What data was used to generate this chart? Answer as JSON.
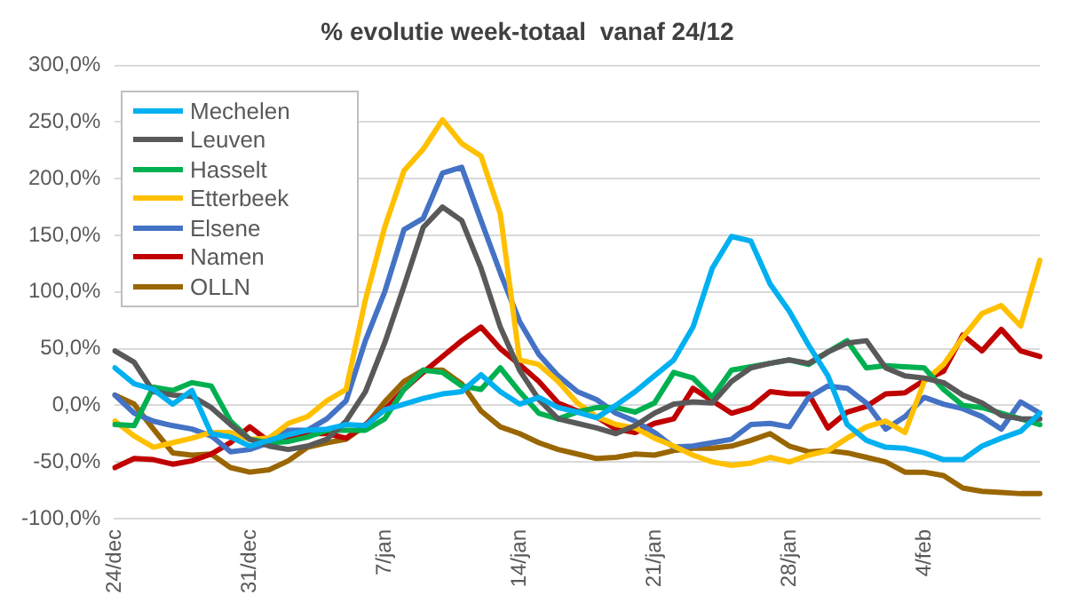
{
  "chart_data": {
    "type": "line",
    "title": "% evolutie week-totaal  vanaf 24/12",
    "categories": [
      "24/dec",
      null,
      null,
      null,
      null,
      null,
      null,
      "31/dec",
      null,
      null,
      null,
      null,
      null,
      null,
      "7/jan",
      null,
      null,
      null,
      null,
      null,
      null,
      "14/jan",
      null,
      null,
      null,
      null,
      null,
      null,
      "21/jan",
      null,
      null,
      null,
      null,
      null,
      null,
      "28/jan",
      null,
      null,
      null,
      null,
      null,
      null,
      "4/feb",
      null,
      null,
      null,
      null,
      null,
      null
    ],
    "series": [
      {
        "name": "Mechelen",
        "color": "#00b0f0",
        "values": [
          33,
          19,
          14,
          1,
          13,
          -25,
          -28,
          -36,
          -31,
          -26,
          -22,
          -21,
          -17,
          -18,
          -4,
          1,
          6,
          10,
          12,
          27,
          12,
          1,
          7,
          -2,
          -6,
          -11,
          0,
          12,
          26,
          40,
          69,
          121,
          149,
          145,
          107,
          83,
          53,
          26,
          -17,
          -31,
          -37,
          -38,
          -42,
          -48,
          -48,
          -36,
          -29,
          -23,
          -7
        ]
      },
      {
        "name": "Leuven",
        "color": "#595959",
        "values": [
          48,
          38,
          12,
          9,
          8,
          -2,
          -17,
          -30,
          -36,
          -39,
          -36,
          -30,
          -14,
          12,
          55,
          105,
          157,
          175,
          163,
          121,
          69,
          31,
          5,
          -12,
          -16,
          -20,
          -25,
          -18,
          -7,
          1,
          3,
          2,
          21,
          33,
          37,
          40,
          37,
          47,
          55,
          57,
          33,
          26,
          24,
          20,
          9,
          2,
          -9,
          -12,
          -12
        ]
      },
      {
        "name": "Hasselt",
        "color": "#00b050",
        "values": [
          -17,
          -18,
          16,
          13,
          20,
          17,
          -14,
          -30,
          -33,
          -32,
          -28,
          -22,
          -22,
          -22,
          -12,
          14,
          31,
          29,
          17,
          14,
          33,
          12,
          -7,
          -12,
          -6,
          -2,
          -2,
          -6,
          2,
          29,
          24,
          7,
          31,
          34,
          37,
          40,
          36,
          47,
          57,
          33,
          35,
          34,
          33,
          14,
          0,
          -2,
          -7,
          -12,
          -17
        ]
      },
      {
        "name": "Etterbeek",
        "color": "#ffc000",
        "values": [
          -14,
          -27,
          -37,
          -33,
          -29,
          -24,
          -24,
          -30,
          -29,
          -16,
          -10,
          4,
          14,
          93,
          157,
          207,
          226,
          252,
          231,
          220,
          169,
          40,
          36,
          21,
          2,
          -10,
          -17,
          -20,
          -29,
          -36,
          -44,
          -50,
          -53,
          -51,
          -46,
          -50,
          -44,
          -40,
          -29,
          -19,
          -14,
          -24,
          21,
          36,
          60,
          81,
          88,
          70,
          128
        ]
      },
      {
        "name": "Elsene",
        "color": "#4472c4",
        "values": [
          9,
          -7,
          -14,
          -18,
          -21,
          -27,
          -41,
          -39,
          -33,
          -22,
          -22,
          -12,
          4,
          57,
          100,
          155,
          165,
          205,
          210,
          163,
          117,
          74,
          45,
          26,
          12,
          5,
          -7,
          -14,
          -24,
          -37,
          -36,
          -33,
          -30,
          -17,
          -16,
          -19,
          7,
          17,
          15,
          2,
          -21,
          -10,
          7,
          1,
          -3,
          -10,
          -21,
          3,
          -7
        ]
      },
      {
        "name": "Namen",
        "color": "#c00000",
        "values": [
          -55,
          -47,
          -48,
          -52,
          -49,
          -43,
          -33,
          -19,
          -32,
          -30,
          -25,
          -25,
          -29,
          -17,
          -4,
          14,
          29,
          43,
          57,
          69,
          50,
          36,
          21,
          2,
          -5,
          -10,
          -21,
          -24,
          -16,
          -12,
          15,
          4,
          -7,
          -2,
          12,
          10,
          10,
          -20,
          -6,
          -1,
          10,
          11,
          22,
          30,
          62,
          48,
          67,
          48,
          43
        ]
      },
      {
        "name": "OLLN",
        "color": "#996600",
        "values": [
          9,
          1,
          -21,
          -42,
          -44,
          -43,
          -55,
          -59,
          -57,
          -49,
          -37,
          -33,
          -30,
          -18,
          3,
          21,
          31,
          31,
          19,
          -5,
          -19,
          -25,
          -33,
          -39,
          -43,
          -47,
          -46,
          -43,
          -44,
          -40,
          -38,
          -38,
          -36,
          -31,
          -25,
          -36,
          -41,
          -40,
          -42,
          -46,
          -50,
          -59,
          -59,
          -62,
          -73,
          -76,
          -77,
          -78,
          -78
        ]
      }
    ],
    "ylim": [
      -100,
      300
    ],
    "yticks": [
      {
        "value": -100,
        "label": "-100,0%"
      },
      {
        "value": -50,
        "label": "-50,0%"
      },
      {
        "value": 0,
        "label": "0,0%"
      },
      {
        "value": 50,
        "label": "50,0%"
      },
      {
        "value": 100,
        "label": "100,0%"
      },
      {
        "value": 150,
        "label": "150,0%"
      },
      {
        "value": 200,
        "label": "200,0%"
      },
      {
        "value": 250,
        "label": "250,0%"
      },
      {
        "value": 300,
        "label": "300,0%"
      }
    ],
    "grid": "y",
    "legend": "top left",
    "marker": "none",
    "line_style": "solid"
  }
}
